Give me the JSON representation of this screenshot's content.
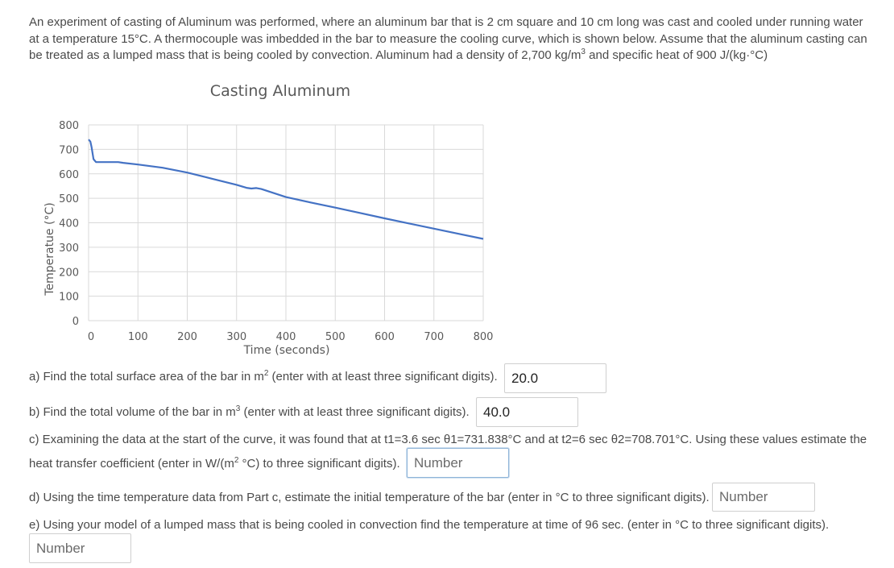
{
  "problem": {
    "intro_p1": "An experiment of casting of Aluminum was performed, where an aluminum bar that is 2 cm square and 10 cm long was cast and cooled under running water at a temperature 15°C. A thermocouple was imbedded in the bar to measure the cooling curve, which is shown below. Assume that the aluminum casting can be treated as a lumped mass that is being cooled by convection. Aluminum had a density of 2,700 kg/m",
    "intro_sup": "3",
    "intro_p2": " and specific heat of 900 J/(kg·°C)"
  },
  "chart_data": {
    "type": "line",
    "title": "Casting Aluminum",
    "xlabel": "Time (seconds)",
    "ylabel": "Temperatue (°C)",
    "xlim": [
      0,
      800
    ],
    "ylim": [
      0,
      800
    ],
    "xticks": [
      0,
      100,
      200,
      300,
      400,
      500,
      600,
      700,
      800
    ],
    "yticks": [
      0,
      100,
      200,
      300,
      400,
      500,
      600,
      700,
      800
    ],
    "grid": true,
    "color": "#4472c4",
    "series": [
      {
        "x": [
          0,
          3.6,
          6,
          10,
          15,
          20,
          40,
          60,
          70,
          100,
          150,
          200,
          250,
          300,
          320,
          330,
          340,
          350,
          400,
          450,
          500,
          550,
          600,
          650,
          700,
          750,
          800
        ],
        "y": [
          740,
          732,
          709,
          660,
          648,
          648,
          648,
          648,
          645,
          638,
          625,
          605,
          580,
          555,
          543,
          540,
          542,
          538,
          505,
          483,
          462,
          440,
          418,
          397,
          376,
          355,
          334
        ]
      }
    ]
  },
  "questions": {
    "a_label_pre": "a) Find the total surface area of the bar in m",
    "a_label_sup": "2",
    "a_label_post": " (enter with at least three significant digits).",
    "a_value": "20.0",
    "b_label_pre": "b) Find the total volume of the bar in m",
    "b_label_sup": "3",
    "b_label_post": " (enter with at least three significant digits).",
    "b_value": "40.0",
    "c_label_line1": "c) Examining the data at the start of the curve, it was found that at t1=3.6 sec θ1=731.838°C and at  t2=6 sec θ2=708.701°C. Using these values estimate the",
    "c_label_line2_pre": "heat transfer coefficient (enter in W/(m",
    "c_label_line2_sup": "2",
    "c_label_line2_post": " °C) to three significant digits).",
    "d_label": "d) Using the time temperature data from Part c, estimate the initial temperature of the bar (enter in °C to three significant digits).",
    "e_label": "e) Using your model of a lumped mass that is being cooled in convection find the temperature at time of 96 sec. (enter in °C to three significant digits).",
    "placeholder": "Number"
  }
}
